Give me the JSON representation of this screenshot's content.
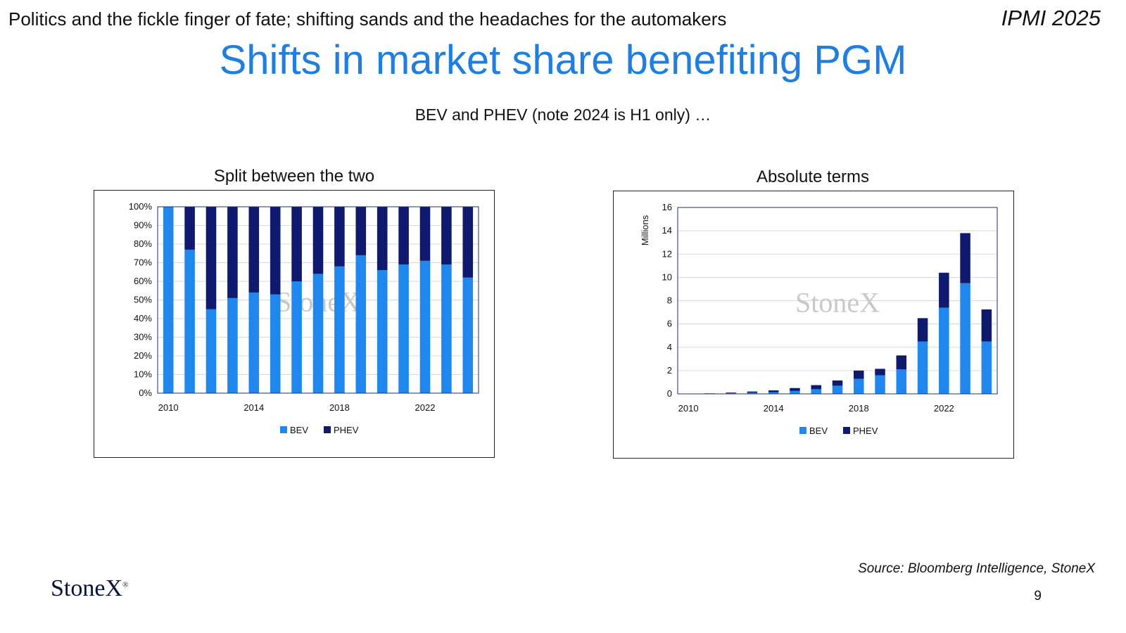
{
  "header": {
    "deck_title": "Politics and the fickle finger of fate; shifting sands and the headaches for the automakers",
    "conference": "IPMI 2025"
  },
  "slide": {
    "title": "Shifts in market share benefiting PGM",
    "subtitle": "BEV and  PHEV (note 2024 is H1 only) …"
  },
  "footer": {
    "source": "Source: Bloomberg Intelligence, StoneX",
    "page_number": "9",
    "logo_text": "StoneX",
    "logo_mark": "®"
  },
  "colors": {
    "bev": "#1f87ee",
    "phev": "#0f1a6e",
    "title": "#1f7fe0"
  },
  "chart_data": [
    {
      "type": "bar",
      "stacked": true,
      "title": "Split between the two",
      "watermark": "StoneX",
      "x": [
        2010,
        2011,
        2012,
        2013,
        2014,
        2015,
        2016,
        2017,
        2018,
        2019,
        2020,
        2021,
        2022,
        2023,
        2024
      ],
      "x_tick_labels": [
        "2010",
        "2014",
        "2018",
        "2022"
      ],
      "x_tick_values": [
        2010,
        2014,
        2018,
        2022
      ],
      "y_tick_labels": [
        "0%",
        "10%",
        "20%",
        "30%",
        "40%",
        "50%",
        "60%",
        "70%",
        "80%",
        "90%",
        "100%"
      ],
      "ylim": [
        0,
        100
      ],
      "series": [
        {
          "name": "BEV",
          "values": [
            100,
            77,
            45,
            51,
            54,
            53,
            60,
            64,
            68,
            74,
            66,
            69,
            71,
            69,
            62
          ]
        },
        {
          "name": "PHEV",
          "values": [
            0,
            23,
            55,
            49,
            46,
            47,
            40,
            36,
            32,
            26,
            34,
            31,
            29,
            31,
            38
          ]
        }
      ],
      "legend": [
        "BEV",
        "PHEV"
      ],
      "legend_position": "bottom",
      "grid": true
    },
    {
      "type": "bar",
      "stacked": true,
      "title": "Absolute terms",
      "ylabel": "Millions",
      "watermark": "StoneX",
      "x": [
        2010,
        2011,
        2012,
        2013,
        2014,
        2015,
        2016,
        2017,
        2018,
        2019,
        2020,
        2021,
        2022,
        2023,
        2024
      ],
      "x_tick_labels": [
        "2010",
        "2014",
        "2018",
        "2022"
      ],
      "x_tick_values": [
        2010,
        2014,
        2018,
        2022
      ],
      "y_tick_labels": [
        "0",
        "2",
        "4",
        "6",
        "8",
        "10",
        "12",
        "14",
        "16"
      ],
      "ylim": [
        0,
        16
      ],
      "series": [
        {
          "name": "BEV",
          "values": [
            0.02,
            0.04,
            0.06,
            0.1,
            0.15,
            0.25,
            0.4,
            0.7,
            1.3,
            1.6,
            2.1,
            4.5,
            7.4,
            9.5,
            4.5
          ]
        },
        {
          "name": "PHEV",
          "values": [
            0.0,
            0.01,
            0.05,
            0.1,
            0.15,
            0.25,
            0.35,
            0.45,
            0.7,
            0.55,
            1.2,
            2.0,
            3.0,
            4.3,
            2.75
          ]
        }
      ],
      "legend": [
        "BEV",
        "PHEV"
      ],
      "legend_position": "bottom",
      "grid": true
    }
  ]
}
